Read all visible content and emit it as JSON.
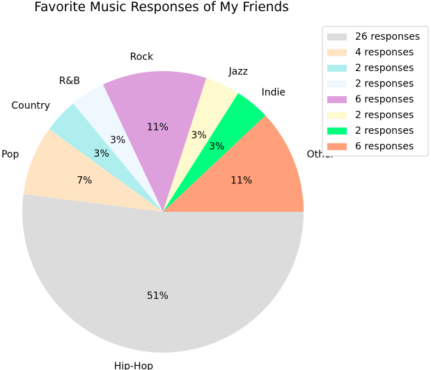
{
  "chart_data": {
    "type": "pie",
    "title": "Favorite Music Responses of My Friends",
    "start_angle_deg": 0,
    "direction": "clockwise",
    "legend_position": "top-right",
    "slices": [
      {
        "label": "Hip-Hop",
        "value": 26,
        "pct_label": "51%",
        "legend": "26 responses",
        "color": "#dcdcdc"
      },
      {
        "label": "Pop",
        "value": 4,
        "pct_label": "7%",
        "legend": "4 responses",
        "color": "#ffe4c4"
      },
      {
        "label": "Country",
        "value": 2,
        "pct_label": "3%",
        "legend": "2 responses",
        "color": "#afeeee"
      },
      {
        "label": "R&B",
        "value": 2,
        "pct_label": "3%",
        "legend": "2 responses",
        "color": "#f0f8ff"
      },
      {
        "label": "Rock",
        "value": 6,
        "pct_label": "11%",
        "legend": "6 responses",
        "color": "#dda0dd"
      },
      {
        "label": "Jazz",
        "value": 2,
        "pct_label": "3%",
        "legend": "2 responses",
        "color": "#fffacd"
      },
      {
        "label": "Indie",
        "value": 2,
        "pct_label": "3%",
        "legend": "2 responses",
        "color": "#00ff7f"
      },
      {
        "label": "Other",
        "value": 6,
        "pct_label": "11%",
        "legend": "6 responses",
        "color": "#ffa07a"
      }
    ]
  }
}
